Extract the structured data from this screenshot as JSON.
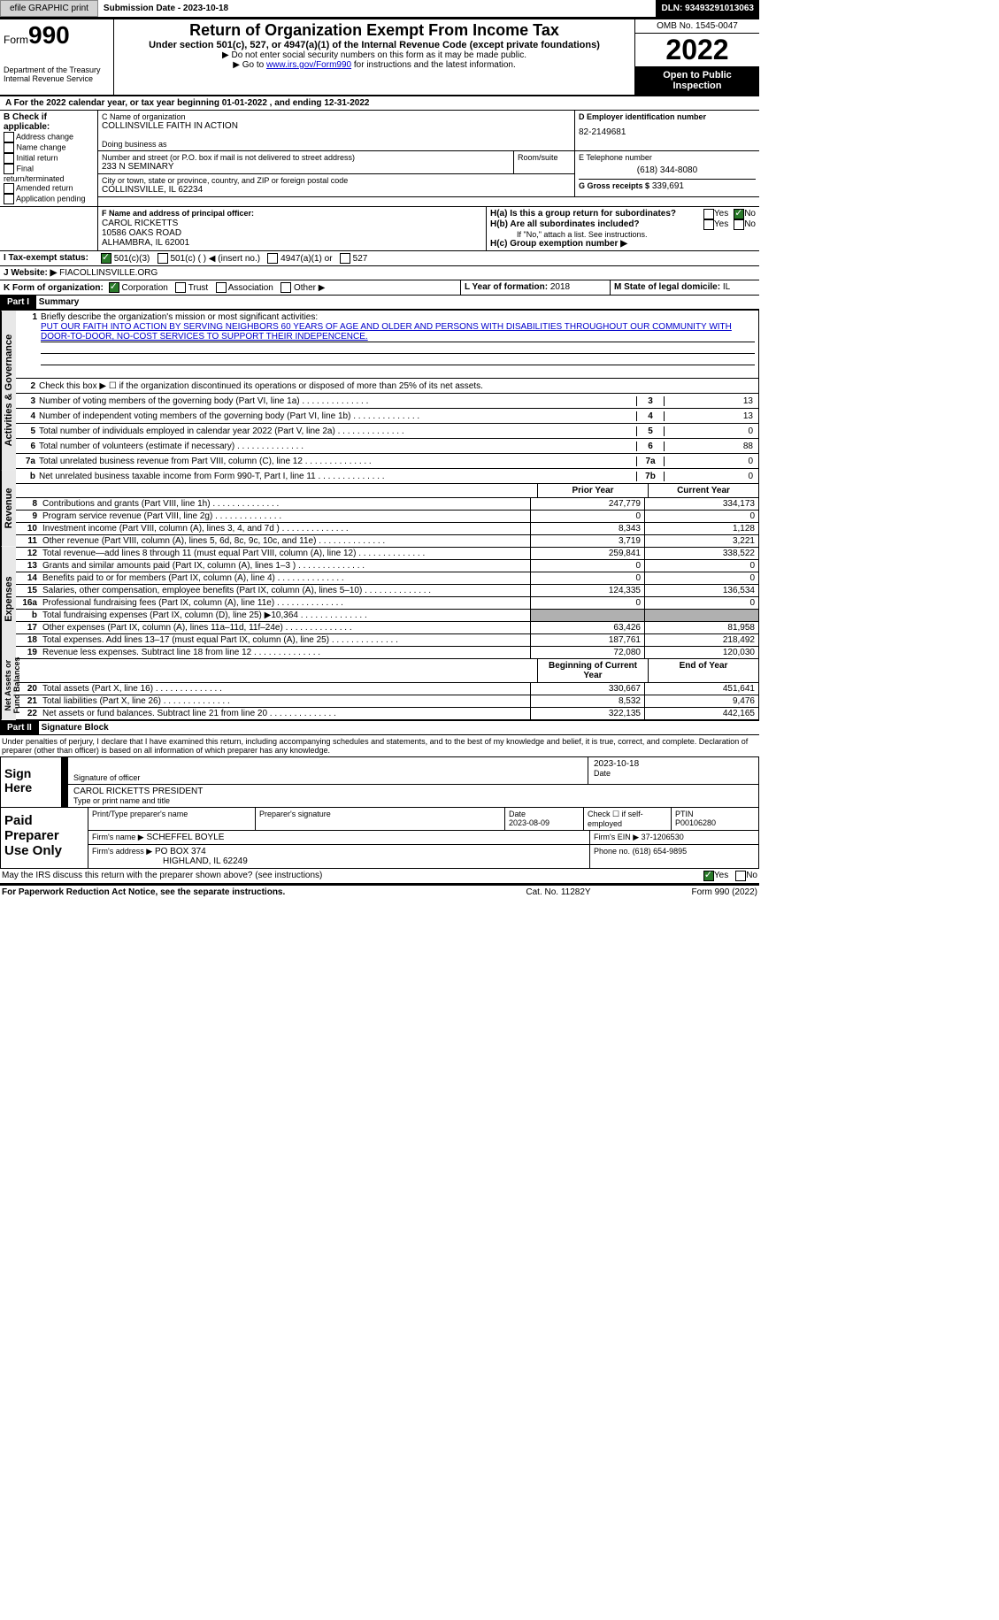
{
  "topbar": {
    "efile_btn": "efile GRAPHIC print",
    "submission": "Submission Date - 2023-10-18",
    "dln": "DLN: 93493291013063"
  },
  "header": {
    "form_prefix": "Form",
    "form_no": "990",
    "dept": "Department of the Treasury\nInternal Revenue Service",
    "title": "Return of Organization Exempt From Income Tax",
    "subtitle": "Under section 501(c), 527, or 4947(a)(1) of the Internal Revenue Code (except private foundations)",
    "line1": "▶ Do not enter social security numbers on this form as it may be made public.",
    "line2_pre": "▶ Go to ",
    "line2_link": "www.irs.gov/Form990",
    "line2_post": " for instructions and the latest information.",
    "omb": "OMB No. 1545-0047",
    "year": "2022",
    "open": "Open to Public Inspection"
  },
  "section_a": {
    "text": "A For the 2022 calendar year, or tax year beginning 01-01-2022    , and ending 12-31-2022"
  },
  "section_b": {
    "label": "B Check if applicable:",
    "opts": [
      "Address change",
      "Name change",
      "Initial return",
      "Final return/terminated",
      "Amended return",
      "Application pending"
    ]
  },
  "section_c": {
    "name_label": "C Name of organization",
    "name": "COLLINSVILLE FAITH IN ACTION",
    "dba_label": "Doing business as",
    "addr_label": "Number and street (or P.O. box if mail is not delivered to street address)",
    "room": "Room/suite",
    "addr": "233 N SEMINARY",
    "city_label": "City or town, state or province, country, and ZIP or foreign postal code",
    "city": "COLLINSVILLE, IL  62234"
  },
  "section_d": {
    "label": "D Employer identification number",
    "ein": "82-2149681"
  },
  "section_e": {
    "label": "E Telephone number",
    "phone": "(618) 344-8080"
  },
  "section_g": {
    "label": "G Gross receipts $",
    "val": "339,691"
  },
  "section_f": {
    "label": "F Name and address of principal officer:",
    "name": "CAROL RICKETTS",
    "addr1": "10586 OAKS ROAD",
    "addr2": "ALHAMBRA, IL  62001"
  },
  "section_h": {
    "a": "H(a)  Is this a group return for subordinates?",
    "b": "H(b)  Are all subordinates included?",
    "no_note": "If \"No,\" attach a list. See instructions.",
    "c": "H(c)  Group exemption number ▶",
    "yes": "Yes",
    "no": "No"
  },
  "section_i": {
    "label": "I  Tax-exempt status:",
    "opts": [
      "501(c)(3)",
      "501(c) (  ) ◀ (insert no.)",
      "4947(a)(1) or",
      "527"
    ]
  },
  "section_j": {
    "label": "J Website: ▶",
    "val": "FIACOLLINSVILLE.ORG"
  },
  "section_k": {
    "label": "K Form of organization:",
    "opts": [
      "Corporation",
      "Trust",
      "Association",
      "Other ▶"
    ]
  },
  "section_l": {
    "label": "L Year of formation:",
    "val": "2018"
  },
  "section_m": {
    "label": "M State of legal domicile:",
    "val": "IL"
  },
  "part1": {
    "header": "Part I",
    "title": "Summary",
    "mission_label": "Briefly describe the organization's mission or most significant activities:",
    "mission": "PUT OUR FAITH INTO ACTION BY SERVING NEIGHBORS 60 YEARS OF AGE AND OLDER AND PERSONS WITH DISABILITIES THROUGHOUT OUR COMMUNITY WITH DOOR-TO-DOOR, NO-COST SERVICES TO SUPPORT THEIR INDEPENCENCE.",
    "line2": "Check this box ▶ ☐  if the organization discontinued its operations or disposed of more than 25% of its net assets.",
    "lines_top": [
      {
        "no": "3",
        "text": "Number of voting members of the governing body (Part VI, line 1a)",
        "box": "3",
        "val": "13"
      },
      {
        "no": "4",
        "text": "Number of independent voting members of the governing body (Part VI, line 1b)",
        "box": "4",
        "val": "13"
      },
      {
        "no": "5",
        "text": "Total number of individuals employed in calendar year 2022 (Part V, line 2a)",
        "box": "5",
        "val": "0"
      },
      {
        "no": "6",
        "text": "Total number of volunteers (estimate if necessary)",
        "box": "6",
        "val": "88"
      },
      {
        "no": "7a",
        "text": "Total unrelated business revenue from Part VIII, column (C), line 12",
        "box": "7a",
        "val": "0"
      },
      {
        "no": "b",
        "text": "Net unrelated business taxable income from Form 990-T, Part I, line 11",
        "box": "7b",
        "val": "0"
      }
    ],
    "col_prior": "Prior Year",
    "col_current": "Current Year",
    "revenue": [
      {
        "no": "8",
        "text": "Contributions and grants (Part VIII, line 1h)",
        "prior": "247,779",
        "current": "334,173"
      },
      {
        "no": "9",
        "text": "Program service revenue (Part VIII, line 2g)",
        "prior": "0",
        "current": "0"
      },
      {
        "no": "10",
        "text": "Investment income (Part VIII, column (A), lines 3, 4, and 7d )",
        "prior": "8,343",
        "current": "1,128"
      },
      {
        "no": "11",
        "text": "Other revenue (Part VIII, column (A), lines 5, 6d, 8c, 9c, 10c, and 11e)",
        "prior": "3,719",
        "current": "3,221"
      },
      {
        "no": "12",
        "text": "Total revenue—add lines 8 through 11 (must equal Part VIII, column (A), line 12)",
        "prior": "259,841",
        "current": "338,522"
      }
    ],
    "expenses": [
      {
        "no": "13",
        "text": "Grants and similar amounts paid (Part IX, column (A), lines 1–3 )",
        "prior": "0",
        "current": "0"
      },
      {
        "no": "14",
        "text": "Benefits paid to or for members (Part IX, column (A), line 4)",
        "prior": "0",
        "current": "0"
      },
      {
        "no": "15",
        "text": "Salaries, other compensation, employee benefits (Part IX, column (A), lines 5–10)",
        "prior": "124,335",
        "current": "136,534"
      },
      {
        "no": "16a",
        "text": "Professional fundraising fees (Part IX, column (A), line 11e)",
        "prior": "0",
        "current": "0"
      },
      {
        "no": "b",
        "text": "Total fundraising expenses (Part IX, column (D), line 25) ▶10,364",
        "prior": "",
        "current": "",
        "shaded": true
      },
      {
        "no": "17",
        "text": "Other expenses (Part IX, column (A), lines 11a–11d, 11f–24e)",
        "prior": "63,426",
        "current": "81,958"
      },
      {
        "no": "18",
        "text": "Total expenses. Add lines 13–17 (must equal Part IX, column (A), line 25)",
        "prior": "187,761",
        "current": "218,492"
      },
      {
        "no": "19",
        "text": "Revenue less expenses. Subtract line 18 from line 12",
        "prior": "72,080",
        "current": "120,030"
      }
    ],
    "col_begin": "Beginning of Current Year",
    "col_end": "End of Year",
    "netassets": [
      {
        "no": "20",
        "text": "Total assets (Part X, line 16)",
        "prior": "330,667",
        "current": "451,641"
      },
      {
        "no": "21",
        "text": "Total liabilities (Part X, line 26)",
        "prior": "8,532",
        "current": "9,476"
      },
      {
        "no": "22",
        "text": "Net assets or fund balances. Subtract line 21 from line 20",
        "prior": "322,135",
        "current": "442,165"
      }
    ],
    "tabs": {
      "ag": "Activities & Governance",
      "rev": "Revenue",
      "exp": "Expenses",
      "na": "Net Assets or\nFund Balances"
    }
  },
  "part2": {
    "header": "Part II",
    "title": "Signature Block",
    "declaration": "Under penalties of perjury, I declare that I have examined this return, including accompanying schedules and statements, and to the best of my knowledge and belief, it is true, correct, and complete. Declaration of preparer (other than officer) is based on all information of which preparer has any knowledge.",
    "sign_here": "Sign Here",
    "sig_officer": "Signature of officer",
    "sig_date": "2023-10-18",
    "date_label": "Date",
    "officer_name": "CAROL RICKETTS  PRESIDENT",
    "type_name": "Type or print name and title",
    "paid_prep": "Paid Preparer Use Only",
    "print_name": "Print/Type preparer's name",
    "prep_sig": "Preparer's signature",
    "date2_label": "Date",
    "date2": "2023-08-09",
    "check_self": "Check ☐ if self-employed",
    "ptin_label": "PTIN",
    "ptin": "P00106280",
    "firm_name_label": "Firm's name   ▶",
    "firm_name": "SCHEFFEL BOYLE",
    "firm_ein_label": "Firm's EIN ▶",
    "firm_ein": "37-1206530",
    "firm_addr_label": "Firm's address ▶",
    "firm_addr": "PO BOX 374",
    "firm_city": "HIGHLAND, IL  62249",
    "phone_label": "Phone no.",
    "phone": "(618) 654-9895",
    "may_irs": "May the IRS discuss this return with the preparer shown above? (see instructions)",
    "yes": "Yes",
    "no": "No"
  },
  "footer": {
    "left": "For Paperwork Reduction Act Notice, see the separate instructions.",
    "mid": "Cat. No. 11282Y",
    "right": "Form 990 (2022)"
  }
}
